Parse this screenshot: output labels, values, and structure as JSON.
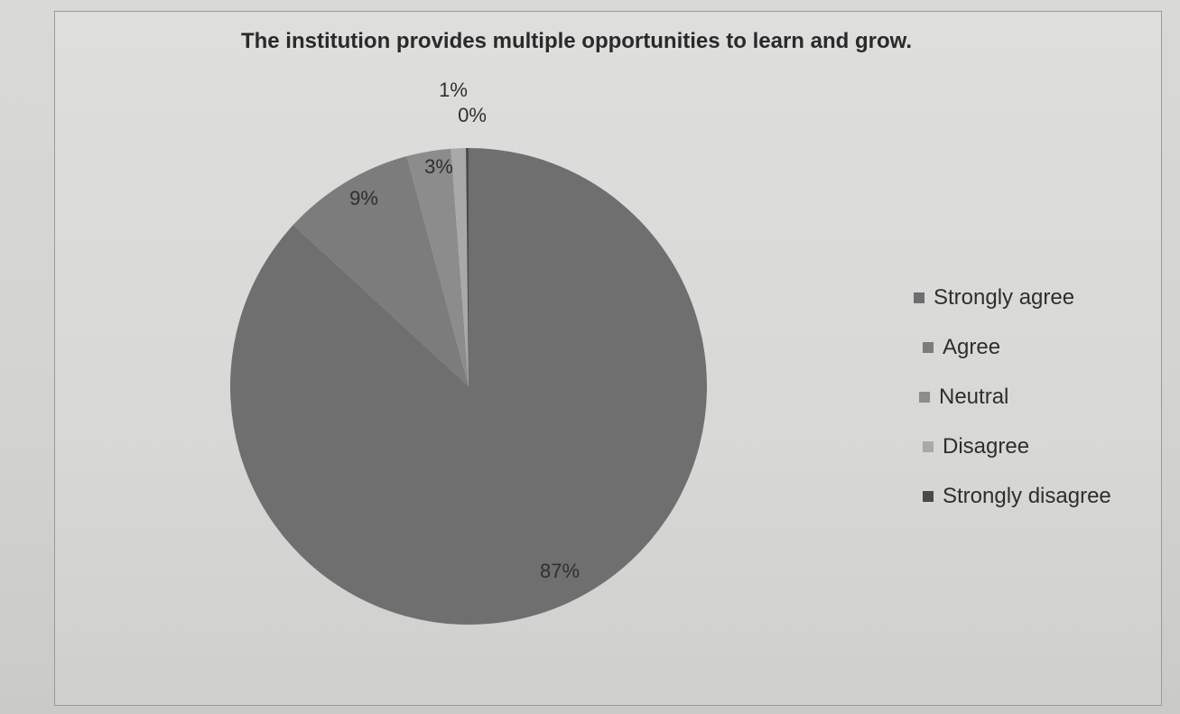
{
  "chart_data": {
    "type": "pie",
    "title": "The institution provides multiple opportunities to learn and grow.",
    "categories": [
      "Strongly agree",
      "Agree",
      "Neutral",
      "Disagree",
      "Strongly disagree"
    ],
    "values": [
      87,
      9,
      3,
      1,
      0
    ],
    "labels": [
      "87%",
      "9%",
      "3%",
      "1%",
      "0%"
    ],
    "colors": [
      "#6f6f6f",
      "#7c7c7c",
      "#8c8c8c",
      "#a9a9a9",
      "#4a4a4a"
    ],
    "legend_position": "right"
  }
}
